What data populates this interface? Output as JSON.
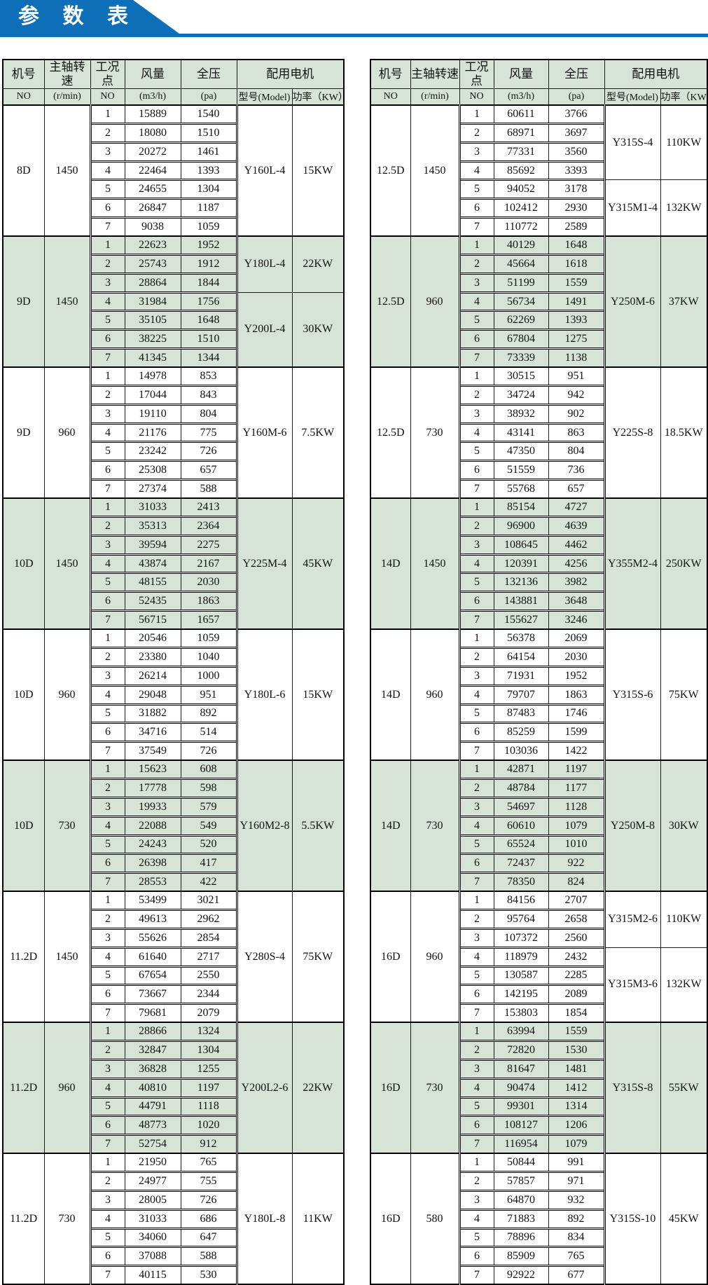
{
  "title": "参 数 表",
  "colors": {
    "banner_blue": "#0e6fb8",
    "row_green": "#d6e3d6"
  },
  "header": {
    "machine_no": "机号",
    "shaft_speed": "主轴转速",
    "operating_point": "工况点",
    "air_volume": "风量",
    "total_pressure": "全压",
    "motor": "配用电机",
    "no1": "NO",
    "rpm_unit": "(r/min)",
    "no2": "NO",
    "volume_unit": "(m3/h)",
    "pressure_unit": "(pa)",
    "model_label": "型号(Model)",
    "power_label": "功率（KW）"
  },
  "tables": [
    {
      "groups": [
        {
          "machine": "8D",
          "speed": "1450",
          "shade": "w",
          "rows": [
            [
              1,
              15889,
              1540
            ],
            [
              2,
              18080,
              1510
            ],
            [
              3,
              20272,
              1461
            ],
            [
              4,
              22464,
              1393
            ],
            [
              5,
              24655,
              1304
            ],
            [
              6,
              26847,
              1187
            ],
            [
              7,
              9038,
              1059
            ]
          ],
          "motors": [
            {
              "model": "Y160L-4",
              "power": "15KW",
              "rows": 7
            }
          ]
        },
        {
          "machine": "9D",
          "speed": "1450",
          "shade": "g",
          "rows": [
            [
              1,
              22623,
              1952
            ],
            [
              2,
              25743,
              1912
            ],
            [
              3,
              28864,
              1844
            ],
            [
              4,
              31984,
              1756
            ],
            [
              5,
              35105,
              1648
            ],
            [
              6,
              38225,
              1510
            ],
            [
              7,
              41345,
              1344
            ]
          ],
          "motors": [
            {
              "model": "Y180L-4",
              "power": "22KW",
              "rows": 3
            },
            {
              "model": "Y200L-4",
              "power": "30KW",
              "rows": 4
            }
          ]
        },
        {
          "machine": "9D",
          "speed": "960",
          "shade": "w",
          "rows": [
            [
              1,
              14978,
              853
            ],
            [
              2,
              17044,
              843
            ],
            [
              3,
              19110,
              804
            ],
            [
              4,
              21176,
              775
            ],
            [
              5,
              23242,
              726
            ],
            [
              6,
              25308,
              657
            ],
            [
              7,
              27374,
              588
            ]
          ],
          "motors": [
            {
              "model": "Y160M-6",
              "power": "7.5KW",
              "rows": 7
            }
          ]
        },
        {
          "machine": "10D",
          "speed": "1450",
          "shade": "g",
          "rows": [
            [
              1,
              31033,
              2413
            ],
            [
              2,
              35313,
              2364
            ],
            [
              3,
              39594,
              2275
            ],
            [
              4,
              43874,
              2167
            ],
            [
              5,
              48155,
              2030
            ],
            [
              6,
              52435,
              1863
            ],
            [
              7,
              56715,
              1657
            ]
          ],
          "motors": [
            {
              "model": "Y225M-4",
              "power": "45KW",
              "rows": 7
            }
          ]
        },
        {
          "machine": "10D",
          "speed": "960",
          "shade": "w",
          "rows": [
            [
              1,
              20546,
              1059
            ],
            [
              2,
              23380,
              1040
            ],
            [
              3,
              26214,
              1000
            ],
            [
              4,
              29048,
              951
            ],
            [
              5,
              31882,
              892
            ],
            [
              6,
              34716,
              514
            ],
            [
              7,
              37549,
              726
            ]
          ],
          "motors": [
            {
              "model": "Y180L-6",
              "power": "15KW",
              "rows": 7
            }
          ]
        },
        {
          "machine": "10D",
          "speed": "730",
          "shade": "g",
          "rows": [
            [
              1,
              15623,
              608
            ],
            [
              2,
              17778,
              598
            ],
            [
              3,
              19933,
              579
            ],
            [
              4,
              22088,
              549
            ],
            [
              5,
              24243,
              520
            ],
            [
              6,
              26398,
              417
            ],
            [
              7,
              28553,
              422
            ]
          ],
          "motors": [
            {
              "model": "Y160M2-8",
              "power": "5.5KW",
              "rows": 7
            }
          ]
        },
        {
          "machine": "11.2D",
          "speed": "1450",
          "shade": "w",
          "rows": [
            [
              1,
              53499,
              3021
            ],
            [
              2,
              49613,
              2962
            ],
            [
              3,
              55626,
              2854
            ],
            [
              4,
              61640,
              2717
            ],
            [
              5,
              67654,
              2550
            ],
            [
              6,
              73667,
              2344
            ],
            [
              7,
              79681,
              2079
            ]
          ],
          "motors": [
            {
              "model": "Y280S-4",
              "power": "75KW",
              "rows": 7
            }
          ]
        },
        {
          "machine": "11.2D",
          "speed": "960",
          "shade": "g",
          "rows": [
            [
              1,
              28866,
              1324
            ],
            [
              2,
              32847,
              1304
            ],
            [
              3,
              36828,
              1255
            ],
            [
              4,
              40810,
              1197
            ],
            [
              5,
              44791,
              1118
            ],
            [
              6,
              48773,
              1020
            ],
            [
              7,
              52754,
              912
            ]
          ],
          "motors": [
            {
              "model": "Y200L2-6",
              "power": "22KW",
              "rows": 7
            }
          ]
        },
        {
          "machine": "11.2D",
          "speed": "730",
          "shade": "w",
          "rows": [
            [
              1,
              21950,
              765
            ],
            [
              2,
              24977,
              755
            ],
            [
              3,
              28005,
              726
            ],
            [
              4,
              31033,
              686
            ],
            [
              5,
              34060,
              647
            ],
            [
              6,
              37088,
              588
            ],
            [
              7,
              40115,
              530
            ]
          ],
          "motors": [
            {
              "model": "Y180L-8",
              "power": "11KW",
              "rows": 7
            }
          ]
        }
      ]
    },
    {
      "groups": [
        {
          "machine": "12.5D",
          "speed": "1450",
          "shade": "w",
          "rows": [
            [
              1,
              60611,
              3766
            ],
            [
              2,
              68971,
              3697
            ],
            [
              3,
              77331,
              3560
            ],
            [
              4,
              85692,
              3393
            ],
            [
              5,
              94052,
              3178
            ],
            [
              6,
              102412,
              2930
            ],
            [
              7,
              110772,
              2589
            ]
          ],
          "motors": [
            {
              "model": "Y315S-4",
              "power": "110KW",
              "rows": 4
            },
            {
              "model": "Y315M1-4",
              "power": "132KW",
              "rows": 3
            }
          ]
        },
        {
          "machine": "12.5D",
          "speed": "960",
          "shade": "g",
          "rows": [
            [
              1,
              40129,
              1648
            ],
            [
              2,
              45664,
              1618
            ],
            [
              3,
              51199,
              1559
            ],
            [
              4,
              56734,
              1491
            ],
            [
              5,
              62269,
              1393
            ],
            [
              6,
              67804,
              1275
            ],
            [
              7,
              73339,
              1138
            ]
          ],
          "motors": [
            {
              "model": "Y250M-6",
              "power": "37KW",
              "rows": 7
            }
          ]
        },
        {
          "machine": "12.5D",
          "speed": "730",
          "shade": "w",
          "rows": [
            [
              1,
              30515,
              951
            ],
            [
              2,
              34724,
              942
            ],
            [
              3,
              38932,
              902
            ],
            [
              4,
              43141,
              863
            ],
            [
              5,
              47350,
              804
            ],
            [
              6,
              51559,
              736
            ],
            [
              7,
              55768,
              657
            ]
          ],
          "motors": [
            {
              "model": "Y225S-8",
              "power": "18.5KW",
              "rows": 7
            }
          ]
        },
        {
          "machine": "14D",
          "speed": "1450",
          "shade": "g",
          "rows": [
            [
              1,
              85154,
              4727
            ],
            [
              2,
              96900,
              4639
            ],
            [
              3,
              108645,
              4462
            ],
            [
              4,
              120391,
              4256
            ],
            [
              5,
              132136,
              3982
            ],
            [
              6,
              143881,
              3648
            ],
            [
              7,
              155627,
              3246
            ]
          ],
          "motors": [
            {
              "model": "Y355M2-4",
              "power": "250KW",
              "rows": 7
            }
          ]
        },
        {
          "machine": "14D",
          "speed": "960",
          "shade": "w",
          "rows": [
            [
              1,
              56378,
              2069
            ],
            [
              2,
              64154,
              2030
            ],
            [
              3,
              71931,
              1952
            ],
            [
              4,
              79707,
              1863
            ],
            [
              5,
              87483,
              1746
            ],
            [
              6,
              85259,
              1599
            ],
            [
              7,
              103036,
              1422
            ]
          ],
          "motors": [
            {
              "model": "Y315S-6",
              "power": "75KW",
              "rows": 7
            }
          ]
        },
        {
          "machine": "14D",
          "speed": "730",
          "shade": "g",
          "rows": [
            [
              1,
              42871,
              1197
            ],
            [
              2,
              48784,
              1177
            ],
            [
              3,
              54697,
              1128
            ],
            [
              4,
              60610,
              1079
            ],
            [
              5,
              65524,
              1010
            ],
            [
              6,
              72437,
              922
            ],
            [
              7,
              78350,
              824
            ]
          ],
          "motors": [
            {
              "model": "Y250M-8",
              "power": "30KW",
              "rows": 7
            }
          ]
        },
        {
          "machine": "16D",
          "speed": "960",
          "shade": "w",
          "rows": [
            [
              1,
              84156,
              2707
            ],
            [
              2,
              95764,
              2658
            ],
            [
              3,
              107372,
              2560
            ],
            [
              4,
              118979,
              2432
            ],
            [
              5,
              130587,
              2285
            ],
            [
              6,
              142195,
              2089
            ],
            [
              7,
              153803,
              1854
            ]
          ],
          "motors": [
            {
              "model": "Y315M2-6",
              "power": "110KW",
              "rows": 3
            },
            {
              "model": "Y315M3-6",
              "power": "132KW",
              "rows": 4
            }
          ]
        },
        {
          "machine": "16D",
          "speed": "730",
          "shade": "g",
          "rows": [
            [
              1,
              63994,
              1559
            ],
            [
              2,
              72820,
              1530
            ],
            [
              3,
              81647,
              1481
            ],
            [
              4,
              90474,
              1412
            ],
            [
              5,
              99301,
              1314
            ],
            [
              6,
              108127,
              1206
            ],
            [
              7,
              116954,
              1079
            ]
          ],
          "motors": [
            {
              "model": "Y315S-8",
              "power": "55KW",
              "rows": 7
            }
          ]
        },
        {
          "machine": "16D",
          "speed": "580",
          "shade": "w",
          "rows": [
            [
              1,
              50844,
              991
            ],
            [
              2,
              57857,
              971
            ],
            [
              3,
              64870,
              932
            ],
            [
              4,
              71883,
              892
            ],
            [
              5,
              78896,
              834
            ],
            [
              6,
              85909,
              765
            ],
            [
              7,
              92922,
              677
            ]
          ],
          "motors": [
            {
              "model": "Y315S-10",
              "power": "45KW",
              "rows": 7
            }
          ]
        }
      ]
    }
  ]
}
